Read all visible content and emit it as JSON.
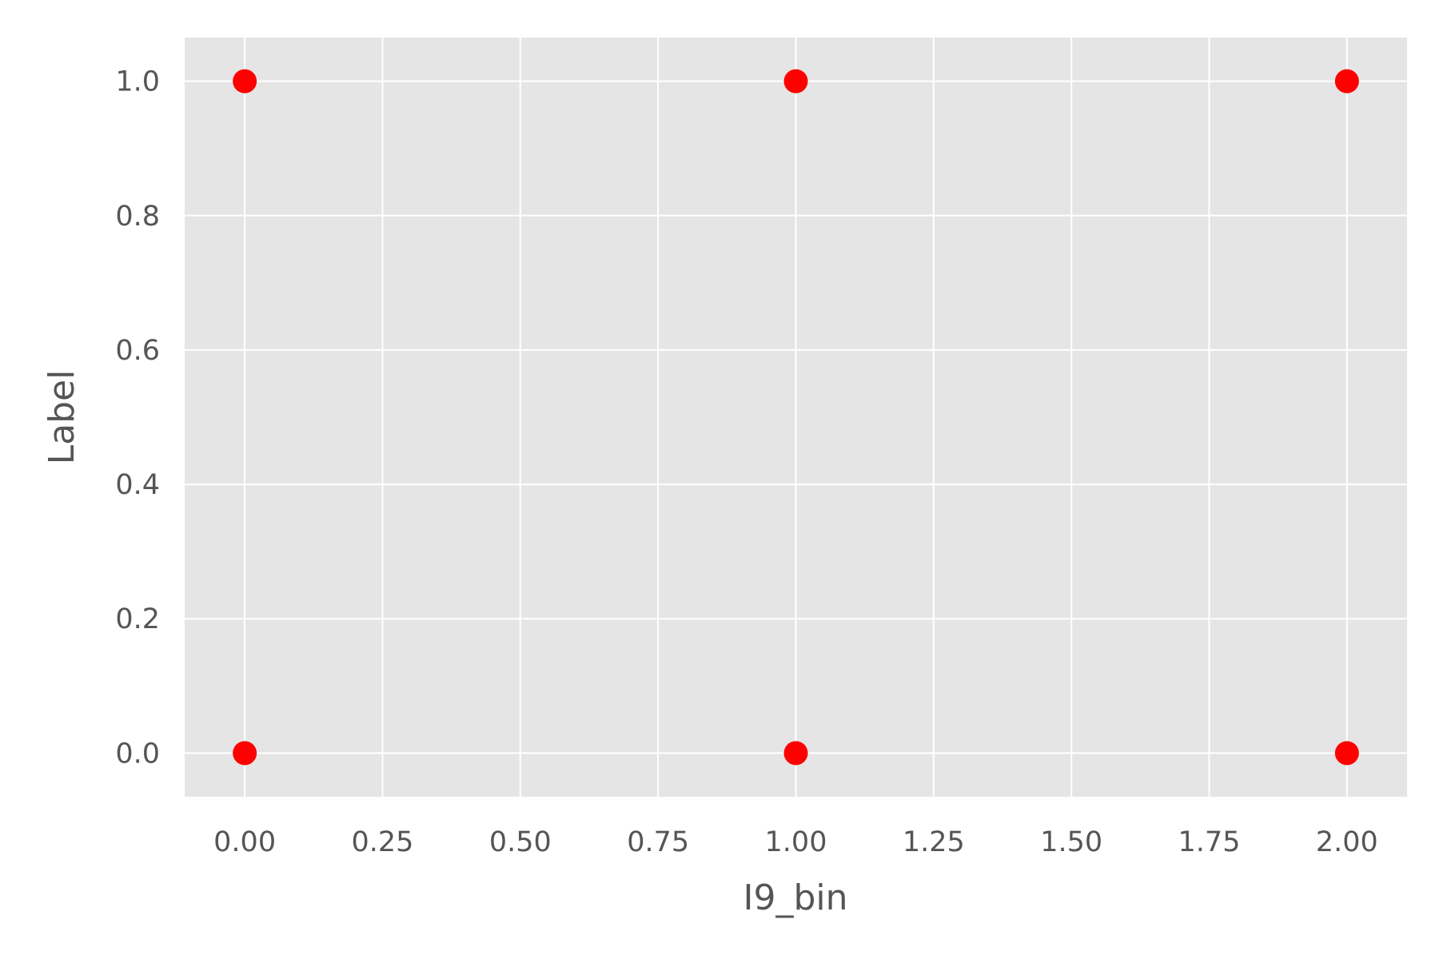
{
  "chart_data": {
    "type": "scatter",
    "title": "",
    "xlabel": "I9_bin",
    "ylabel": "Label",
    "xlim": [
      -0.109,
      2.109
    ],
    "ylim": [
      -0.065,
      1.065
    ],
    "xticks": [
      0.0,
      0.25,
      0.5,
      0.75,
      1.0,
      1.25,
      1.5,
      1.75,
      2.0
    ],
    "xtick_labels": [
      "0.00",
      "0.25",
      "0.50",
      "0.75",
      "1.00",
      "1.25",
      "1.50",
      "1.75",
      "2.00"
    ],
    "yticks": [
      0.0,
      0.2,
      0.4,
      0.6,
      0.8,
      1.0
    ],
    "ytick_labels": [
      "0.0",
      "0.2",
      "0.4",
      "0.6",
      "0.8",
      "1.0"
    ],
    "grid": true,
    "background_color": "#e5e5e5",
    "grid_color": "#ffffff",
    "marker_color": "#ff0000",
    "series": [
      {
        "points": [
          {
            "x": 0,
            "y": 1
          },
          {
            "x": 1,
            "y": 1
          },
          {
            "x": 2,
            "y": 1
          },
          {
            "x": 0,
            "y": 0
          },
          {
            "x": 1,
            "y": 0
          },
          {
            "x": 2,
            "y": 0
          }
        ]
      }
    ]
  }
}
